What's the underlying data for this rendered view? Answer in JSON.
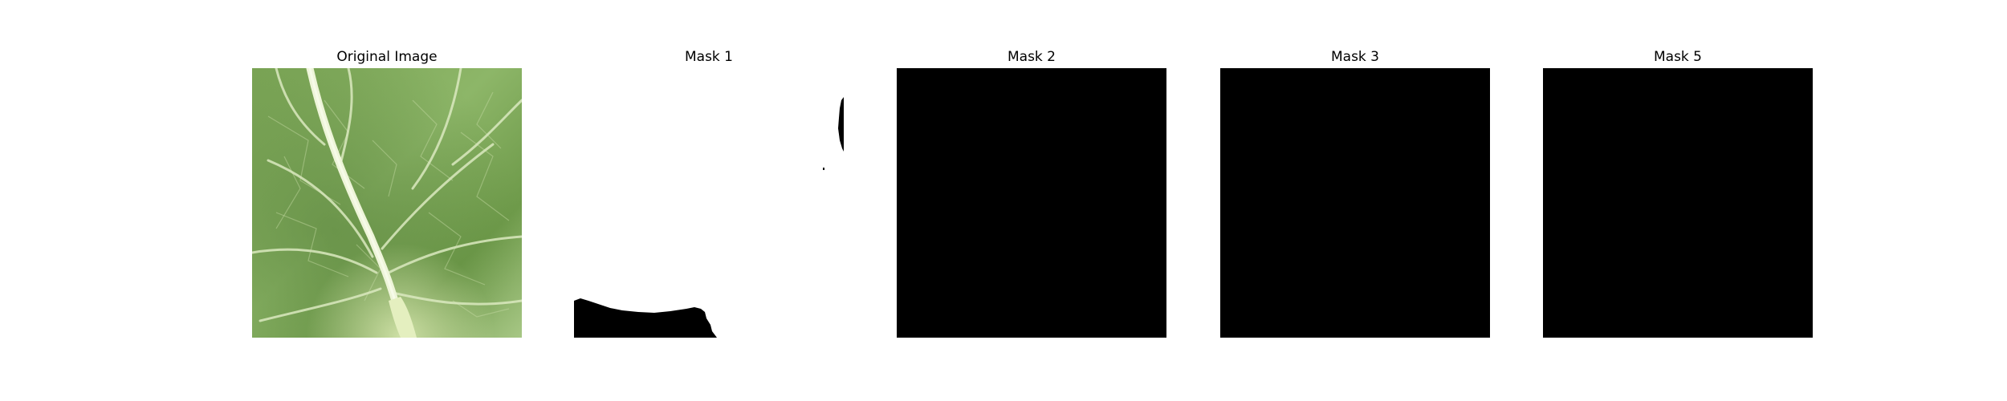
{
  "figure": {
    "panels": [
      {
        "title": "Original Image",
        "kind": "photo",
        "subject": "leaf-icon"
      },
      {
        "title": "Mask 1",
        "kind": "mask",
        "fill": "mostly-white"
      },
      {
        "title": "Mask 2",
        "kind": "mask",
        "fill": "all-black"
      },
      {
        "title": "Mask 3",
        "kind": "mask",
        "fill": "all-black"
      },
      {
        "title": "Mask 5",
        "kind": "mask",
        "fill": "all-black"
      }
    ],
    "colors": {
      "background": "#ffffff",
      "mask_black": "#000000",
      "mask_white": "#ffffff",
      "leaf_dark": "#5f8a3c",
      "leaf_light": "#9fc27a",
      "vein": "#e7f1cf"
    }
  }
}
